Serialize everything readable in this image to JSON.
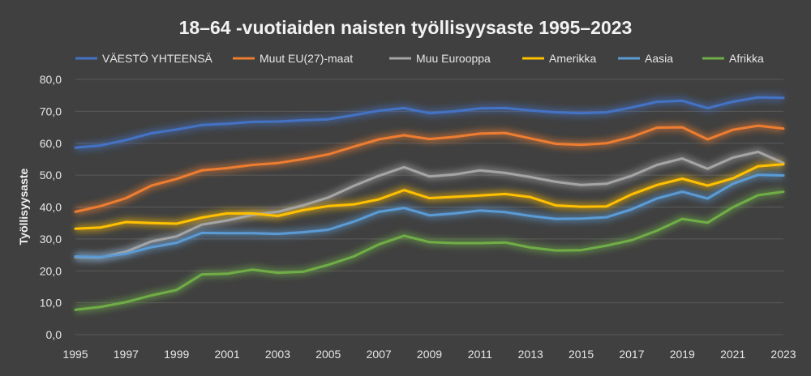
{
  "chart_data": {
    "type": "line",
    "title": "18–64 -vuotiaiden naisten työllisyysaste 1995–2023",
    "xlabel": "",
    "ylabel": "Työllisyysaste",
    "ylim": [
      0,
      80
    ],
    "yticks": [
      "0,0",
      "10,0",
      "20,0",
      "30,0",
      "40,0",
      "50,0",
      "60,0",
      "70,0",
      "80,0"
    ],
    "xticks": [
      "1995",
      "1997",
      "1999",
      "2001",
      "2003",
      "2005",
      "2007",
      "2009",
      "2011",
      "2013",
      "2015",
      "2017",
      "2019",
      "2021",
      "2023"
    ],
    "x": [
      1995,
      1996,
      1997,
      1998,
      1999,
      2000,
      2001,
      2002,
      2003,
      2004,
      2005,
      2006,
      2007,
      2008,
      2009,
      2010,
      2011,
      2012,
      2013,
      2014,
      2015,
      2016,
      2017,
      2018,
      2019,
      2020,
      2021,
      2022,
      2023
    ],
    "grid": true,
    "legend_position": "top",
    "series": [
      {
        "name": "VÄESTÖ YHTEENSÄ",
        "color": "#4472c4",
        "values": [
          58.6,
          59.3,
          61.0,
          63.1,
          64.3,
          65.7,
          66.1,
          66.7,
          66.8,
          67.2,
          67.5,
          68.8,
          70.2,
          71.0,
          69.4,
          70.0,
          70.9,
          71.0,
          70.3,
          69.7,
          69.4,
          69.7,
          71.2,
          73.0,
          73.3,
          71.0,
          73.0,
          74.4,
          74.2
        ]
      },
      {
        "name": "Muut EU(27)-maat",
        "color": "#ed7d31",
        "values": [
          38.5,
          40.3,
          42.8,
          46.7,
          48.8,
          51.5,
          52.2,
          53.2,
          53.8,
          55.0,
          56.5,
          58.9,
          61.2,
          62.5,
          61.3,
          62.0,
          63.0,
          63.2,
          61.5,
          59.8,
          59.5,
          60.0,
          62.0,
          64.9,
          65.0,
          61.2,
          64.2,
          65.5,
          64.6
        ]
      },
      {
        "name": "Muu Eurooppa",
        "color": "#a5a5a5",
        "values": [
          24.3,
          24.2,
          26.0,
          29.2,
          30.8,
          34.5,
          35.8,
          37.5,
          38.5,
          40.5,
          43.0,
          46.6,
          49.8,
          52.5,
          49.6,
          50.2,
          51.5,
          50.7,
          49.4,
          47.9,
          46.9,
          47.3,
          49.8,
          53.2,
          55.2,
          52.0,
          55.5,
          57.3,
          53.8
        ]
      },
      {
        "name": "Amerikka",
        "color": "#ffc000",
        "values": [
          33.2,
          33.6,
          35.3,
          35.0,
          34.8,
          36.7,
          38.0,
          38.0,
          37.2,
          39.0,
          40.3,
          40.8,
          42.4,
          45.3,
          42.8,
          43.2,
          43.6,
          44.1,
          43.1,
          40.5,
          40.1,
          40.2,
          44.0,
          46.9,
          48.9,
          46.7,
          49.0,
          52.8,
          53.4
        ]
      },
      {
        "name": "Aasia",
        "color": "#5b9bd5",
        "values": [
          24.5,
          24.3,
          25.4,
          27.4,
          28.8,
          31.9,
          31.8,
          31.8,
          31.6,
          32.1,
          32.9,
          35.4,
          38.5,
          39.7,
          37.4,
          38.0,
          38.9,
          38.4,
          37.2,
          36.3,
          36.4,
          36.8,
          39.3,
          42.7,
          44.8,
          42.7,
          47.3,
          50.1,
          49.9
        ]
      },
      {
        "name": "Afrikka",
        "color": "#70ad47",
        "values": [
          7.8,
          8.7,
          10.2,
          12.3,
          14.0,
          18.9,
          19.1,
          20.4,
          19.4,
          19.7,
          21.9,
          24.5,
          28.3,
          31.0,
          29.0,
          28.7,
          28.7,
          28.9,
          27.3,
          26.4,
          26.5,
          27.9,
          29.6,
          32.6,
          36.3,
          35.1,
          39.9,
          43.7,
          44.8
        ]
      }
    ]
  }
}
